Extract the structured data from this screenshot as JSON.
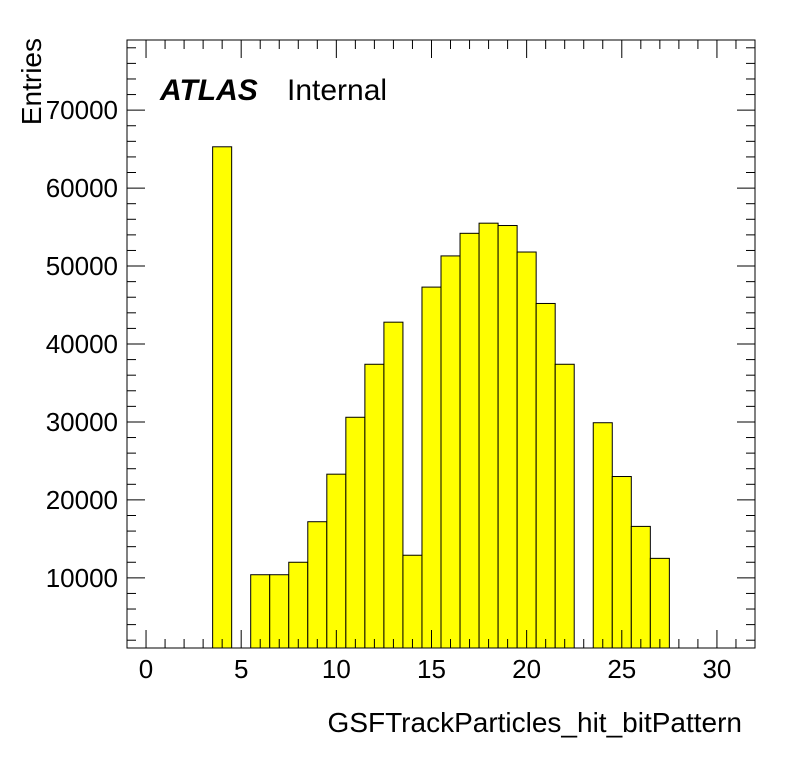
{
  "chart_data": {
    "type": "bar",
    "histogram": true,
    "bin_width": 1,
    "bins": [
      {
        "x": 0,
        "value": 0
      },
      {
        "x": 1,
        "value": 0
      },
      {
        "x": 2,
        "value": 0
      },
      {
        "x": 3,
        "value": 0
      },
      {
        "x": 4,
        "value": 65300
      },
      {
        "x": 5,
        "value": 0
      },
      {
        "x": 6,
        "value": 10400
      },
      {
        "x": 7,
        "value": 10400
      },
      {
        "x": 8,
        "value": 12000
      },
      {
        "x": 9,
        "value": 17200
      },
      {
        "x": 10,
        "value": 23300
      },
      {
        "x": 11,
        "value": 30600
      },
      {
        "x": 12,
        "value": 37400
      },
      {
        "x": 13,
        "value": 42800
      },
      {
        "x": 14,
        "value": 12900
      },
      {
        "x": 15,
        "value": 47300
      },
      {
        "x": 16,
        "value": 51300
      },
      {
        "x": 17,
        "value": 54200
      },
      {
        "x": 18,
        "value": 55500
      },
      {
        "x": 19,
        "value": 55200
      },
      {
        "x": 20,
        "value": 51800
      },
      {
        "x": 21,
        "value": 45200
      },
      {
        "x": 22,
        "value": 37400
      },
      {
        "x": 23,
        "value": 0
      },
      {
        "x": 24,
        "value": 29900
      },
      {
        "x": 25,
        "value": 23000
      },
      {
        "x": 26,
        "value": 16600
      },
      {
        "x": 27,
        "value": 12500
      },
      {
        "x": 28,
        "value": 0
      },
      {
        "x": 29,
        "value": 0
      },
      {
        "x": 30,
        "value": 0
      },
      {
        "x": 31,
        "value": 0
      }
    ],
    "xlabel": "GSFTrackParticles_hit_bitPattern",
    "ylabel": "Entries",
    "xlim": [
      -1,
      32
    ],
    "ylim": [
      1000,
      79000
    ],
    "x_ticks": [
      0,
      5,
      10,
      15,
      20,
      25,
      30
    ],
    "y_ticks": [
      10000,
      20000,
      30000,
      40000,
      50000,
      60000,
      70000
    ],
    "fill_color": "#ffff00",
    "line_color": "#000000",
    "grid": false,
    "legend": false
  },
  "atlas_label": "ATLAS",
  "atlas_status": "Internal"
}
